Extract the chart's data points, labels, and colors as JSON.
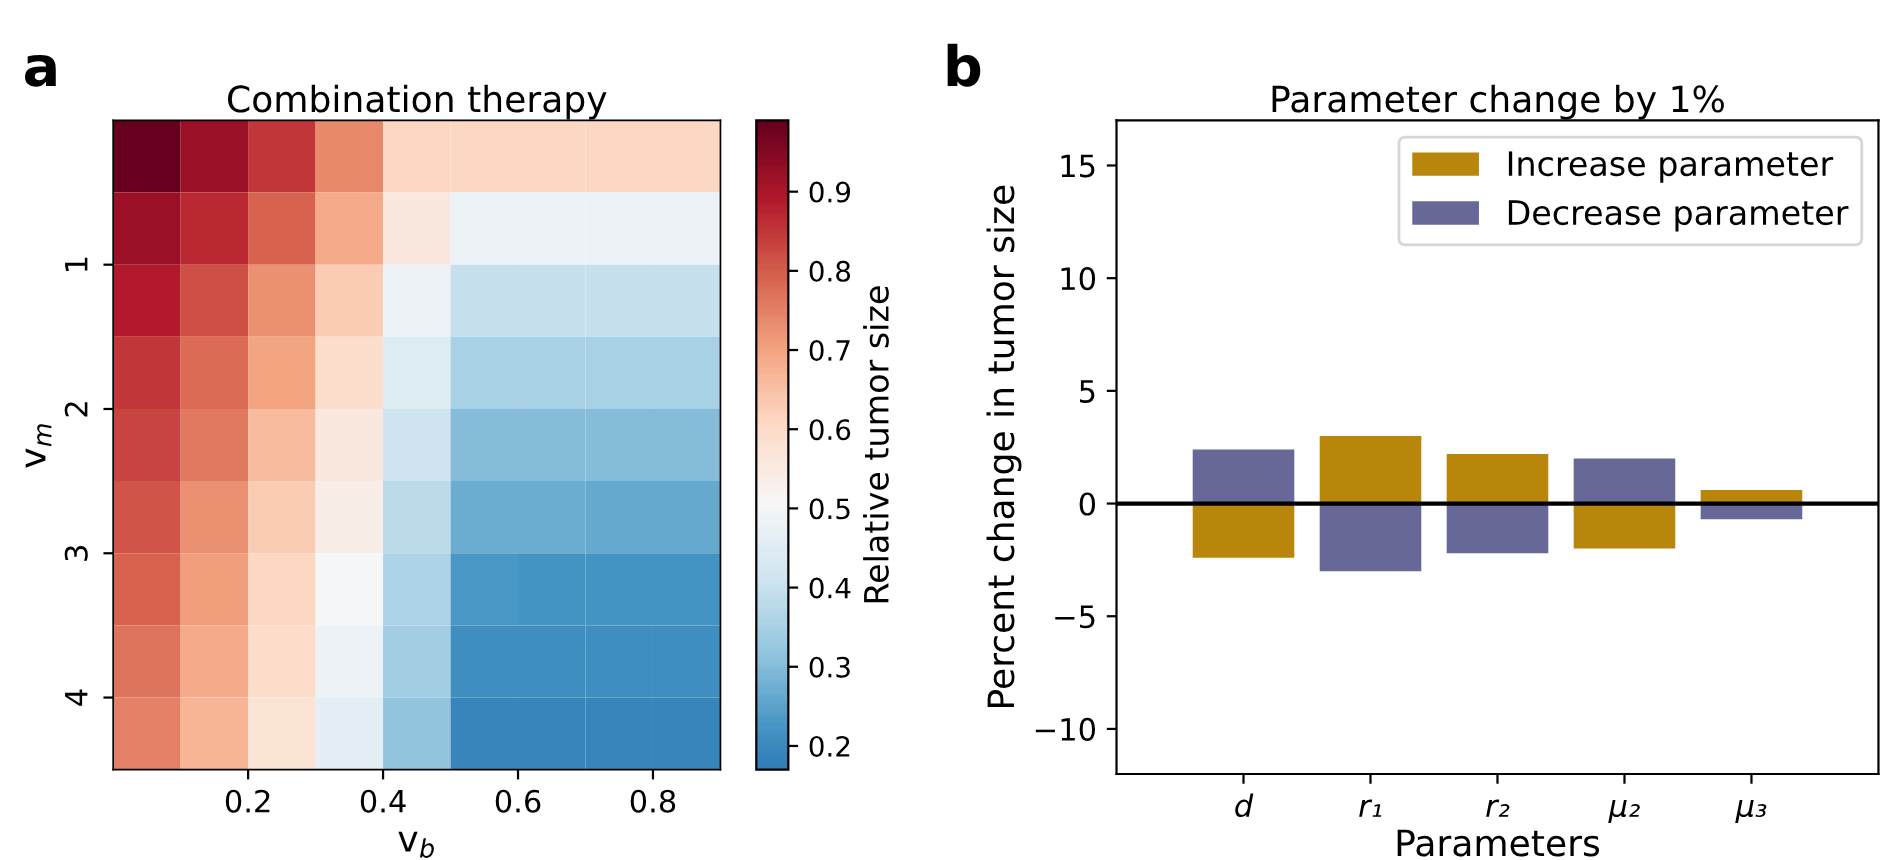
{
  "chart_data": [
    {
      "type": "heatmap",
      "title": "Combination therapy",
      "xlabel": "v$_{b}$",
      "ylabel": "v$_{m}$",
      "clabel": "Relative tumor size",
      "cells": [
        [
          0.99,
          0.92,
          0.85,
          0.74,
          0.61,
          0.61,
          0.61,
          0.61,
          0.61
        ],
        [
          0.92,
          0.87,
          0.79,
          0.69,
          0.56,
          0.48,
          0.48,
          0.48,
          0.48
        ],
        [
          0.89,
          0.82,
          0.73,
          0.63,
          0.48,
          0.4,
          0.4,
          0.4,
          0.4
        ],
        [
          0.85,
          0.78,
          0.7,
          0.59,
          0.44,
          0.35,
          0.35,
          0.35,
          0.35
        ],
        [
          0.83,
          0.76,
          0.66,
          0.56,
          0.41,
          0.3,
          0.3,
          0.3,
          0.3
        ],
        [
          0.81,
          0.73,
          0.63,
          0.54,
          0.38,
          0.27,
          0.27,
          0.26,
          0.26
        ],
        [
          0.79,
          0.71,
          0.61,
          0.5,
          0.36,
          0.23,
          0.22,
          0.22,
          0.22
        ],
        [
          0.77,
          0.69,
          0.6,
          0.48,
          0.34,
          0.21,
          0.21,
          0.21,
          0.21
        ],
        [
          0.75,
          0.67,
          0.58,
          0.46,
          0.32,
          0.19,
          0.19,
          0.19,
          0.19
        ]
      ],
      "clim": [
        0.17,
        0.99
      ],
      "cticks": [
        0.2,
        0.3,
        0.4,
        0.5,
        0.6,
        0.7,
        0.8,
        0.9
      ],
      "xlim": [
        0,
        0.9
      ],
      "ylim": [
        4.5,
        0
      ],
      "xticks": [
        0.2,
        0.4,
        0.6,
        0.8
      ],
      "yticks": [
        1,
        2,
        3,
        4
      ],
      "annotations": [
        "a"
      ]
    },
    {
      "type": "bar",
      "title": "Parameter change by 1%",
      "xlabel": "Parameters",
      "ylabel": "Percent change in tumor size",
      "categories": [
        "d",
        "r₁",
        "r₂",
        "μ₂",
        "μ₃"
      ],
      "stacked": true,
      "series": [
        {
          "name": "Increase parameter",
          "color": "#b8860b",
          "values": [
            -2.4,
            3.0,
            2.2,
            -2.0,
            0.6
          ]
        },
        {
          "name": "Decrease parameter",
          "color": "#676798",
          "values": [
            2.4,
            -3.0,
            -2.2,
            2.0,
            -0.7
          ]
        }
      ],
      "ylim": [
        -12,
        17
      ],
      "yticks": [
        -10,
        -5,
        0,
        5,
        10,
        15
      ],
      "ref_lines": [
        {
          "axis": "y",
          "value": 0,
          "color": "#000000"
        }
      ],
      "legend": "top right",
      "grid": false,
      "annotations": [
        "b"
      ]
    }
  ]
}
